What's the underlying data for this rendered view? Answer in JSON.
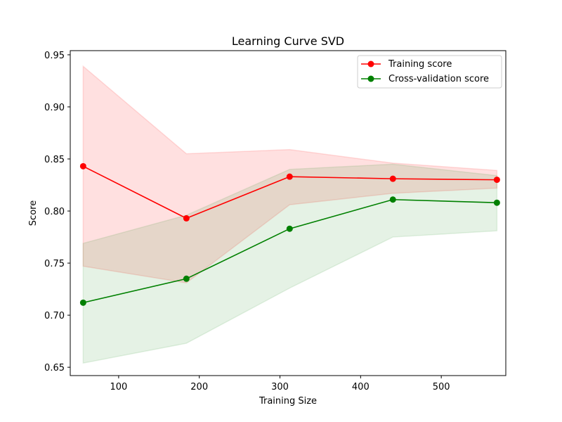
{
  "chart_data": {
    "type": "line",
    "title": "Learning Curve SVD",
    "xlabel": "Training Size",
    "ylabel": "Score",
    "xlim": [
      40,
      580
    ],
    "ylim": [
      0.642,
      0.954
    ],
    "x_ticks": [
      100,
      200,
      300,
      400,
      500
    ],
    "x_tick_labels": [
      "100",
      "200",
      "300",
      "400",
      "500"
    ],
    "y_ticks": [
      0.65,
      0.7,
      0.75,
      0.8,
      0.85,
      0.9,
      0.95
    ],
    "y_tick_labels": [
      "0.65",
      "0.70",
      "0.75",
      "0.80",
      "0.85",
      "0.90",
      "0.95"
    ],
    "grid": false,
    "legend_position": "top-right",
    "x": [
      56,
      184,
      312,
      440,
      569
    ],
    "series": [
      {
        "name": "Training score",
        "color": "#ff0000",
        "values": [
          0.843,
          0.793,
          0.833,
          0.831,
          0.83
        ],
        "band_upper": [
          0.939,
          0.855,
          0.859,
          0.846,
          0.839
        ],
        "band_lower": [
          0.747,
          0.731,
          0.806,
          0.817,
          0.822
        ],
        "band_color": "#ff0000",
        "band_opacity": 0.12
      },
      {
        "name": "Cross-validation score",
        "color": "#008000",
        "values": [
          0.712,
          0.735,
          0.783,
          0.811,
          0.808
        ],
        "band_upper": [
          0.769,
          0.796,
          0.84,
          0.845,
          0.834
        ],
        "band_lower": [
          0.654,
          0.673,
          0.726,
          0.775,
          0.781
        ],
        "band_color": "#008000",
        "band_opacity": 0.1
      }
    ]
  }
}
